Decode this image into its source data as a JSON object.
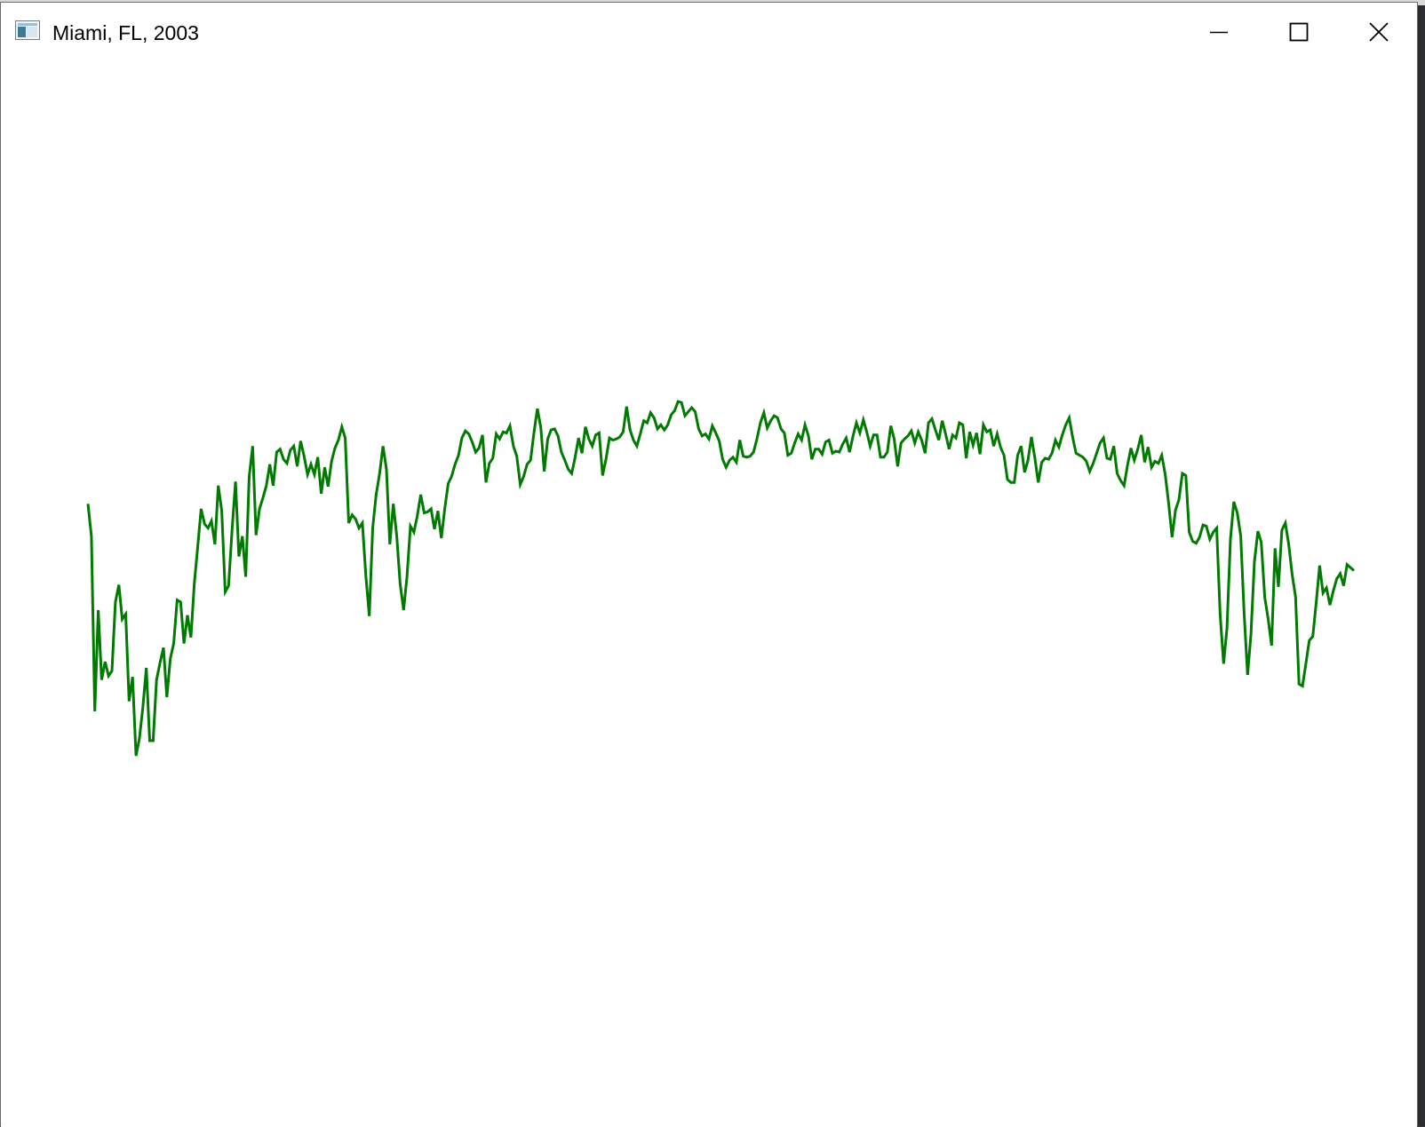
{
  "window": {
    "title": "Miami, FL, 2003",
    "buttons": {
      "minimize": "minimize",
      "maximize": "maximize",
      "close": "close"
    }
  },
  "colors": {
    "line": "#007a00",
    "background": "#ffffff",
    "titlebar_text": "#000000"
  },
  "chart_data": {
    "type": "line",
    "title": "",
    "xlabel": "",
    "ylabel": "",
    "grid": false,
    "legend": "none",
    "xlim": [
      1,
      365
    ],
    "ylim": [
      0,
      100
    ],
    "series": [
      {
        "color": "#007a00",
        "values": [
          59.8,
          56.6,
          39.3,
          49.3,
          42.4,
          44.2,
          42.8,
          43.3,
          50.1,
          51.8,
          48.4,
          48.9,
          40.3,
          42.7,
          34.9,
          36.6,
          39.7,
          43.6,
          36.4,
          36.4,
          42.4,
          44.1,
          45.6,
          40.7,
          44.5,
          46.0,
          50.3,
          50.1,
          46.0,
          48.8,
          46.6,
          51.9,
          55.6,
          59.3,
          57.8,
          57.4,
          58.1,
          55.8,
          61.6,
          59.1,
          51.1,
          51.7,
          57.2,
          62.0,
          54.6,
          56.6,
          52.6,
          62.5,
          65.5,
          56.7,
          59.3,
          60.4,
          61.6,
          63.7,
          61.6,
          64.9,
          65.2,
          64.2,
          63.8,
          65.1,
          65.5,
          63.5,
          66.0,
          64.5,
          62.7,
          63.7,
          62.7,
          64.4,
          60.8,
          63.4,
          61.5,
          64.0,
          65.3,
          66.1,
          67.4,
          66.3,
          57.9,
          58.7,
          58.3,
          57.4,
          57.9,
          52.7,
          48.7,
          57.4,
          60.7,
          62.8,
          65.5,
          63.2,
          55.8,
          59.8,
          56.6,
          51.9,
          49.3,
          52.6,
          57.6,
          57.0,
          58.6,
          60.7,
          58.9,
          59.0,
          59.3,
          57.3,
          59.1,
          56.4,
          59.3,
          61.8,
          62.5,
          63.7,
          64.6,
          66.3,
          67.0,
          66.7,
          65.9,
          64.9,
          65.3,
          66.6,
          61.9,
          63.8,
          64.3,
          66.7,
          66.2,
          66.9,
          66.8,
          67.5,
          65.5,
          64.5,
          61.7,
          62.5,
          63.7,
          64.1,
          66.8,
          69.2,
          67.3,
          63.0,
          66.2,
          67.1,
          67.2,
          66.5,
          64.9,
          64.1,
          63.2,
          62.8,
          64.4,
          66.3,
          64.8,
          67.4,
          66.2,
          65.5,
          66.6,
          66.8,
          62.6,
          64.2,
          66.3,
          66.1,
          66.2,
          66.4,
          66.9,
          69.4,
          67.1,
          66.1,
          65.5,
          66.7,
          68.0,
          67.8,
          68.8,
          68.3,
          67.2,
          67.6,
          67.1,
          67.6,
          68.6,
          69.0,
          69.9,
          69.8,
          68.5,
          68.9,
          69.3,
          68.9,
          67.2,
          66.5,
          66.7,
          66.2,
          67.5,
          66.8,
          66.0,
          64.2,
          63.4,
          64.1,
          64.4,
          63.9,
          66.1,
          64.5,
          64.4,
          64.5,
          64.9,
          66.2,
          67.8,
          68.8,
          67.3,
          68.0,
          68.5,
          68.3,
          67.2,
          66.8,
          64.6,
          64.8,
          65.8,
          66.7,
          66.1,
          67.6,
          66.5,
          64.2,
          65.2,
          65.2,
          64.7,
          65.9,
          66.1,
          64.8,
          65.0,
          64.9,
          65.7,
          66.3,
          64.9,
          66.5,
          67.8,
          66.8,
          68.1,
          66.9,
          65.5,
          66.6,
          66.6,
          64.4,
          64.4,
          64.9,
          67.5,
          66.2,
          63.5,
          65.8,
          66.2,
          66.5,
          67.0,
          65.8,
          66.9,
          66.1,
          64.8,
          67.8,
          68.2,
          67.1,
          66.1,
          68.0,
          66.7,
          65.2,
          66.6,
          66.3,
          67.8,
          67.6,
          64.3,
          66.9,
          65.6,
          66.8,
          64.7,
          67.6,
          66.9,
          67.1,
          65.5,
          66.7,
          65.4,
          64.6,
          62.2,
          61.9,
          61.9,
          64.6,
          65.5,
          62.9,
          64.1,
          66.4,
          64.3,
          61.9,
          63.9,
          64.3,
          64.2,
          64.8,
          66.1,
          65.4,
          66.6,
          67.6,
          68.3,
          66.4,
          64.8,
          64.6,
          64.4,
          64.0,
          63.0,
          63.8,
          64.8,
          65.8,
          66.3,
          64.3,
          64.2,
          65.5,
          62.8,
          62.1,
          61.6,
          63.6,
          65.3,
          64.1,
          65.2,
          66.6,
          63.9,
          65.4,
          63.4,
          64.0,
          63.8,
          64.6,
          62.7,
          59.8,
          56.5,
          59.2,
          60.2,
          62.8,
          62.6,
          57.0,
          56.1,
          55.9,
          56.5,
          57.7,
          57.6,
          56.3,
          57.0,
          57.4,
          48.9,
          44.0,
          47.5,
          56.3,
          60.0,
          58.9,
          56.6,
          49.0,
          42.9,
          46.9,
          54.1,
          57.1,
          56.0,
          50.6,
          48.4,
          45.8,
          55.4,
          51.6,
          57.2,
          57.9,
          55.8,
          52.8,
          50.6,
          42.0,
          41.8,
          44.0,
          46.3,
          46.7,
          50.0,
          53.7,
          51.0,
          51.5,
          49.8,
          51.2,
          52.4,
          52.9,
          51.7,
          53.8,
          53.5,
          53.2
        ]
      }
    ]
  }
}
